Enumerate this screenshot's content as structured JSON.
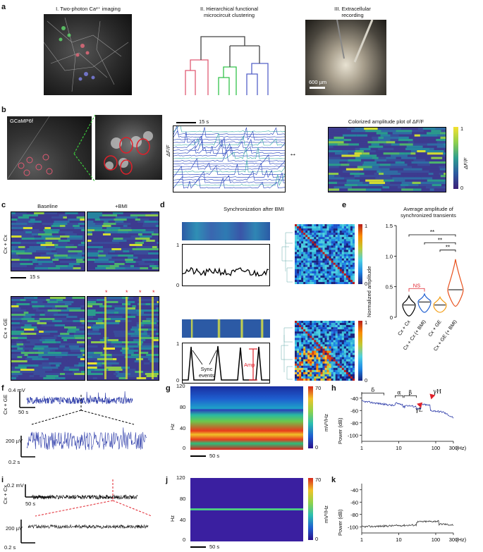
{
  "panel_letters": [
    "a",
    "b",
    "c",
    "d",
    "e",
    "f",
    "g",
    "h",
    "i",
    "j",
    "k"
  ],
  "a": {
    "title1": "I. Two-photon Ca²⁺ imaging",
    "title2_line1": "II. Hierarchical functional",
    "title2_line2": "microcircuit clustering",
    "title3_line1": "III. Extracellular",
    "title3_line2": "recording",
    "scalebar": "600 µm"
  },
  "b": {
    "gcamp_label": "GCaMP6f",
    "scale_label": "15 s",
    "dff_label": "ΔF/F",
    "colorized_title": "Colorized amplitude plot of ΔF/F",
    "cbar_top": "1",
    "cbar_bottom": "0",
    "cbar_label": "ΔF/F"
  },
  "c": {
    "baseline": "Baseline",
    "bmi": "+BMI",
    "row1": "Cx + Cx",
    "row2": "Cx + GE",
    "scale": "15 s"
  },
  "d": {
    "title": "Synchronization after BMI",
    "tick1": "1",
    "tick0": "0",
    "sync": "Sync events",
    "amp": "Amp",
    "cb_top": "1",
    "cb_bottom": "0"
  },
  "e": {
    "title_line1": "Average amplitude of",
    "title_line2": "synchronized transients",
    "ylabel": "Normalized amplitude",
    "ns": "NS",
    "stars": "**",
    "categories": [
      "Cx + Cx",
      "Cx + Cx (+ BMI)",
      "Cx + GE",
      "Cx + GE (+ BMI)"
    ]
  },
  "f": {
    "ylabel": "Cx + GE",
    "scale_mv": "0.4 mV",
    "scale_s": "50 s",
    "scale_uv": "200 µV",
    "scale_s2": "0.2 s"
  },
  "g": {
    "ylabel": "Hz",
    "cb_top": "70",
    "cb_bottom": "0",
    "cb_label": "mV²/Hz",
    "scale": "50 s",
    "yticks": [
      "120",
      "80",
      "40",
      "0"
    ]
  },
  "h": {
    "ylabel": "Power (dB)",
    "xunit": "(Hz)",
    "yticks": [
      "-40",
      "-60",
      "-80",
      "-100"
    ],
    "xticks": [
      "1",
      "10",
      "100",
      "300"
    ],
    "greek": {
      "delta": "δ",
      "alpha": "α",
      "beta": "β",
      "gammaH": "γH",
      "gammaL": "γL"
    }
  },
  "i": {
    "ylabel": "Cx + Cx",
    "scale_mv": "0.2 mV",
    "scale_s": "50 s",
    "scale_uv": "200 µV",
    "scale_s2": "0.2 s"
  },
  "j": {
    "ylabel": "Hz",
    "cb_top": "70",
    "cb_bottom": "0",
    "cb_label": "mV²/Hz",
    "scale": "50 s",
    "yticks": [
      "120",
      "80",
      "40",
      "0"
    ]
  },
  "k": {
    "ylabel": "Power (dB)",
    "xunit": "(Hz)",
    "yticks": [
      "-40",
      "-60",
      "-80",
      "-100"
    ],
    "xticks": [
      "1",
      "10",
      "100",
      "300"
    ]
  },
  "colors": {
    "blue": "#2b3aa8",
    "red": "#d32f2f",
    "green": "#2ea043",
    "violin_black": "#000000",
    "violin_blue": "#1f5fd0",
    "violin_orange": "#f39c12",
    "violin_red": "#e8501c"
  },
  "chart_data": {
    "type": "violin",
    "title": "Average amplitude of synchronized transients",
    "xlabel": "",
    "ylabel": "Normalized amplitude",
    "ylim": [
      0,
      1.5
    ],
    "yticks": [
      0,
      0.5,
      1.0,
      1.5
    ],
    "categories": [
      "Cx + Cx",
      "Cx + Cx (+ BMI)",
      "Cx + GE",
      "Cx + GE (+ BMI)"
    ],
    "medians": [
      0.2,
      0.25,
      0.2,
      0.45
    ],
    "mins": [
      0.02,
      0.08,
      0.08,
      0.18
    ],
    "maxs": [
      0.35,
      0.38,
      0.33,
      0.95
    ]
  }
}
